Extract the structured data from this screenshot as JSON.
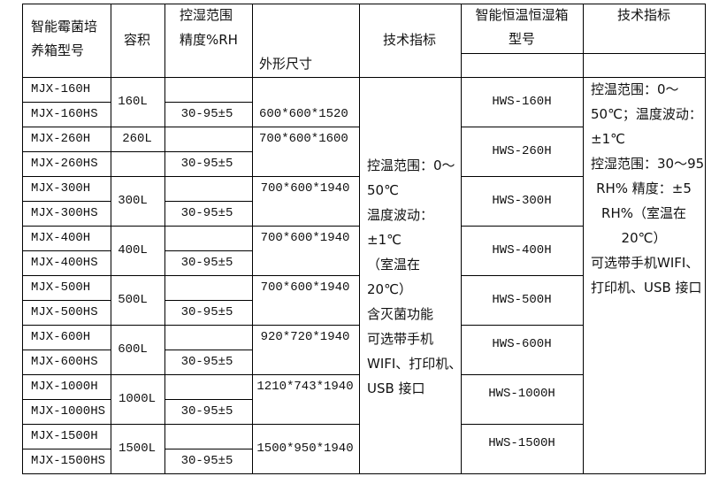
{
  "header": {
    "model_col": [
      "智能霉菌培",
      "养箱型号"
    ],
    "volume_col": "容积",
    "humidity_col": [
      "控湿范围",
      "精度%RH"
    ],
    "dimension_col": "外形尺寸",
    "tech_col": "技术指标",
    "hws_model_col": [
      "智能恒温恒湿箱",
      "型号"
    ],
    "hws_tech_col": "技术指标"
  },
  "rows": [
    {
      "model": "MJX-160H",
      "humidity": ""
    },
    {
      "model": "MJX-160HS",
      "humidity": "30-95±5"
    },
    {
      "model": "MJX-260H",
      "humidity": ""
    },
    {
      "model": "MJX-260HS",
      "humidity": "30-95±5"
    },
    {
      "model": "MJX-300H",
      "humidity": ""
    },
    {
      "model": "MJX-300HS",
      "humidity": "30-95±5"
    },
    {
      "model": "MJX-400H",
      "humidity": ""
    },
    {
      "model": "MJX-400HS",
      "humidity": "30-95±5"
    },
    {
      "model": "MJX-500H",
      "humidity": ""
    },
    {
      "model": "MJX-500HS",
      "humidity": "30-95±5"
    },
    {
      "model": "MJX-600H",
      "humidity": ""
    },
    {
      "model": "MJX-600HS",
      "humidity": "30-95±5"
    },
    {
      "model": "MJX-1000H",
      "humidity": ""
    },
    {
      "model": "MJX-1000HS",
      "humidity": "30-95±5"
    },
    {
      "model": "MJX-1500H",
      "humidity": ""
    },
    {
      "model": "MJX-1500HS",
      "humidity": "30-95±5"
    }
  ],
  "groups": [
    {
      "volume": "160L",
      "dimension": "600*600*1520",
      "hws_model": "HWS-160H"
    },
    {
      "volume": "260L",
      "dimension": "700*600*1600",
      "hws_model": "HWS-260H"
    },
    {
      "volume": "300L",
      "dimension": "700*600*1940",
      "hws_model": "HWS-300H"
    },
    {
      "volume": "400L",
      "dimension": "700*600*1940",
      "hws_model": "HWS-400H"
    },
    {
      "volume": "500L",
      "dimension": "700*600*1940",
      "hws_model": "HWS-500H"
    },
    {
      "volume": "600L",
      "dimension": "920*720*1940",
      "hws_model": "HWS-600H"
    },
    {
      "volume": "1000L",
      "dimension": "1210*743*1940",
      "hws_model": "HWS-1000H"
    },
    {
      "volume": "1500L",
      "dimension": "1500*950*1940",
      "hws_model": "HWS-1500H"
    }
  ],
  "tech_specs": [
    "控温范围：0～",
    "50℃",
    "温度波动：",
    "±1℃",
    "（室温在",
    "20℃）",
    "含灭菌功能",
    "可选带手机",
    "WIFI、打印机、",
    "USB 接口"
  ],
  "hws_tech_specs": [
    "控温范围：0～",
    "50℃；温度波动：",
    "±1℃",
    "控湿范围：30～95",
    "RH% 精度：±5",
    "RH%（室温在",
    "20℃）",
    "可选带手机WIFI、",
    "打印机、USB 接口"
  ]
}
